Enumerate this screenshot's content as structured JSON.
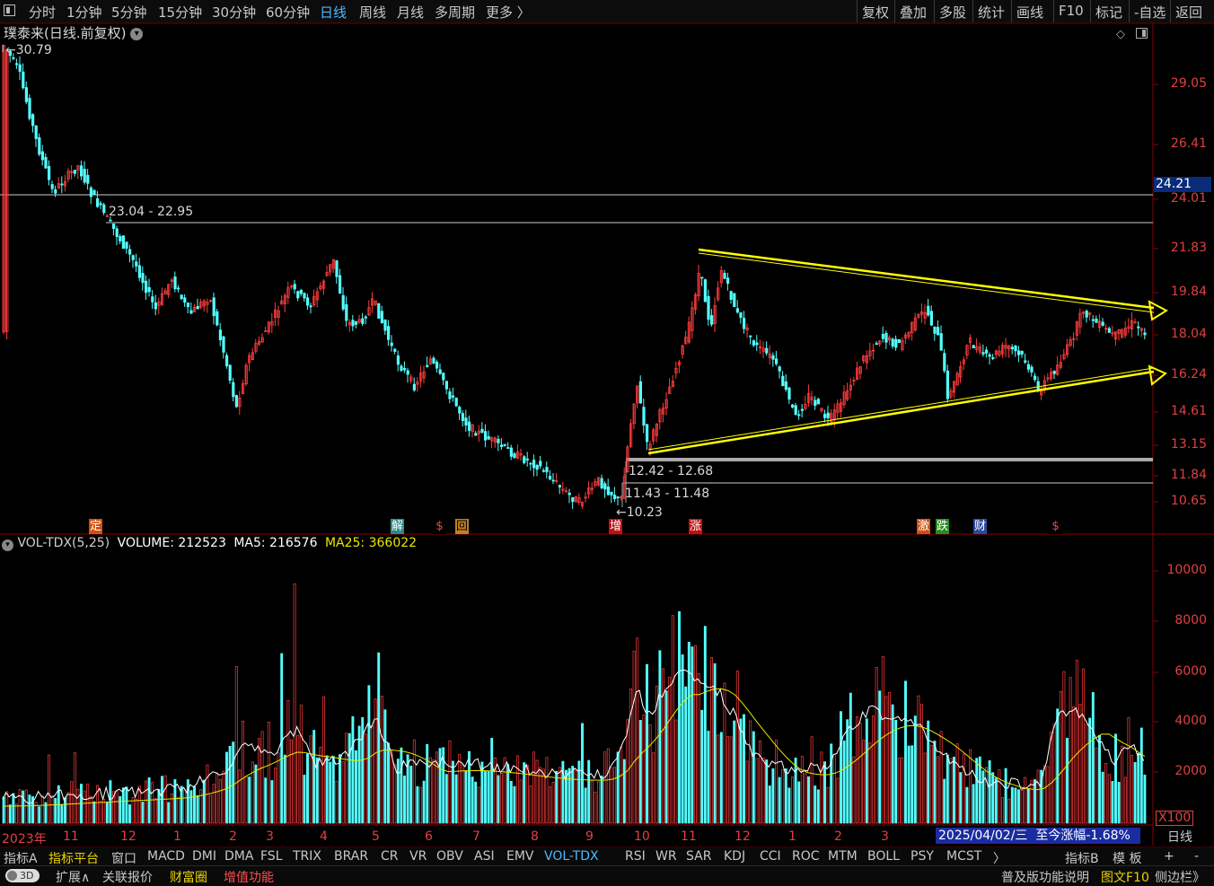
{
  "toolbar": {
    "left": [
      "分时",
      "1分钟",
      "5分钟",
      "15分钟",
      "30分钟",
      "60分钟",
      "日线",
      "周线",
      "月线",
      "多周期",
      "更多 〉"
    ],
    "active": "日线",
    "right": [
      "复权",
      "叠加",
      "多股",
      "统计",
      "画线",
      "F10",
      "标记",
      "-自选",
      "返回"
    ]
  },
  "chart_title": "璞泰来(日线.前复权)",
  "price_axis": [
    "29.05",
    "26.41",
    "24.01",
    "21.83",
    "19.84",
    "18.04",
    "16.24",
    "14.61",
    "13.15",
    "11.84",
    "10.65"
  ],
  "current_price": "24.21",
  "annotations": {
    "high": "30.79",
    "low": "10.23",
    "zone1": "23.04 - 22.95",
    "zone2": "12.42 - 12.68",
    "zone3": "11.43 - 11.48"
  },
  "events": [
    "定",
    "解",
    "$",
    "回",
    "增",
    "涨",
    "激",
    "跌",
    "财",
    "$"
  ],
  "volume_header": {
    "name": "VOL-TDX(5,25)",
    "volume": "VOLUME: 212523",
    "ma5": "MA5: 216576",
    "ma25": "MA25: 366022"
  },
  "volume_axis": [
    "10000",
    "8000",
    "6000",
    "4000",
    "2000"
  ],
  "volume_unit": "X100",
  "months": [
    "2023年",
    "11",
    "12",
    "1",
    "2",
    "3",
    "4",
    "5",
    "6",
    "7",
    "8",
    "9",
    "10",
    "11",
    "12",
    "1",
    "2",
    "3"
  ],
  "status": {
    "date": "2025/04/02/三",
    "change": "至今涨幅-1.68%"
  },
  "period_label": "日线",
  "indicators": [
    "指标A",
    "指标平台",
    "窗口",
    "MACD",
    "DMI",
    "DMA",
    "FSL",
    "TRIX",
    "BRAR",
    "CR",
    "VR",
    "OBV",
    "ASI",
    "EMV",
    "VOL-TDX",
    "RSI",
    "WR",
    "SAR",
    "KDJ",
    "CCI",
    "ROC",
    "MTM",
    "BOLL",
    "PSY",
    "MCST",
    "〉",
    "指标B",
    "模 板",
    "+",
    "-"
  ],
  "active_indicator": "VOL-TDX",
  "bottom": {
    "toggle": "3D",
    "items": [
      "扩展∧",
      "关联报价",
      "财富圈",
      "增值功能"
    ],
    "right": "普及版功能说明",
    "right2": "图文F10",
    "right3": "侧边栏》"
  },
  "colors": {
    "up": "#ff3c3c",
    "down": "#54ffff",
    "ma5": "#ffffff",
    "ma25": "#e8e800",
    "trend": "#ffff00",
    "axis": "#e04040"
  },
  "chart_data": {
    "type": "candlestick+volume",
    "price_ticks": [
      29.05,
      26.41,
      24.01,
      21.83,
      19.84,
      18.04,
      16.24,
      14.61,
      13.15,
      11.84,
      10.65
    ],
    "high": 30.79,
    "low": 10.23,
    "current": 24.21,
    "volume_ticks": [
      10000,
      8000,
      6000,
      4000,
      2000
    ],
    "volume_unit": "X100"
  }
}
